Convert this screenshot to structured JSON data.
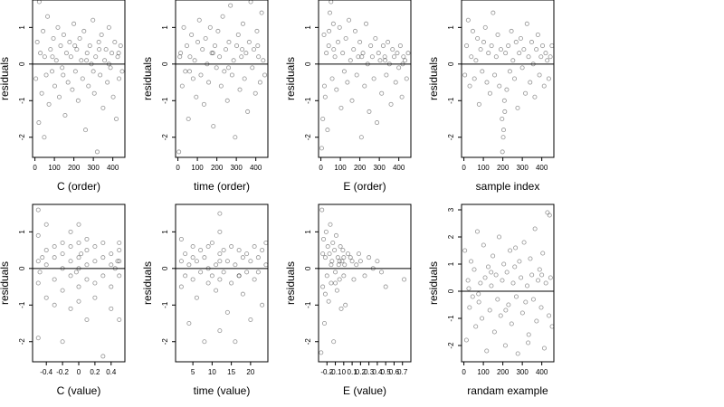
{
  "chart_data": [
    {
      "type": "scatter",
      "xlabel": "C (order)",
      "ylabel": "residuals",
      "xlim": [
        -12,
        462
      ],
      "ylim": [
        -2.55,
        1.75
      ],
      "xticks": [
        0,
        100,
        200,
        300,
        400
      ],
      "yticks": [
        -2,
        -1,
        0,
        1
      ],
      "refline_y": 0,
      "x": [
        5,
        12,
        20,
        28,
        35,
        42,
        50,
        58,
        65,
        72,
        80,
        88,
        95,
        102,
        110,
        118,
        125,
        132,
        140,
        148,
        155,
        162,
        170,
        178,
        185,
        192,
        200,
        208,
        215,
        222,
        230,
        238,
        245,
        252,
        260,
        268,
        275,
        282,
        290,
        298,
        305,
        312,
        320,
        328,
        335,
        342,
        350,
        358,
        365,
        372,
        380,
        388,
        395,
        402,
        410,
        418,
        425,
        432,
        440,
        448,
        22,
        48,
        90,
        145,
        205,
        265,
        300,
        330,
        380,
        430
      ],
      "y": [
        -0.4,
        0.6,
        -1.6,
        0.3,
        -0.8,
        0.9,
        0.2,
        -0.3,
        1.3,
        -1.1,
        0.4,
        -0.2,
        0.7,
        -0.6,
        0.1,
        1.0,
        -0.9,
        0.5,
        -0.1,
        0.8,
        -1.4,
        0.3,
        -0.5,
        0.6,
        0.2,
        -0.7,
        1.1,
        -0.2,
        0.4,
        -1.0,
        0.7,
        0.1,
        -0.4,
        0.9,
        -1.8,
        0.3,
        -0.6,
        0.5,
        0.0,
        1.2,
        -0.8,
        0.2,
        -2.4,
        0.6,
        -0.3,
        0.8,
        -1.2,
        0.1,
        0.4,
        -0.5,
        1.0,
        -0.1,
        0.3,
        -0.9,
        0.6,
        -1.5,
        0.2,
        -0.4,
        0.5,
        -0.2,
        1.7,
        -2.0,
        0.2,
        -0.3,
        0.5,
        0.1,
        -0.2,
        0.4,
        0.0,
        0.3
      ]
    },
    {
      "type": "scatter",
      "xlabel": "time (order)",
      "ylabel": "residuals",
      "xlim": [
        -12,
        462
      ],
      "ylim": [
        -2.55,
        1.75
      ],
      "xticks": [
        0,
        100,
        200,
        300,
        400
      ],
      "yticks": [
        -2,
        -1,
        0,
        1
      ],
      "refline_y": 0,
      "x": [
        5,
        14,
        22,
        30,
        38,
        46,
        54,
        62,
        70,
        78,
        86,
        94,
        102,
        110,
        118,
        126,
        134,
        142,
        150,
        158,
        166,
        174,
        182,
        190,
        198,
        206,
        214,
        222,
        230,
        238,
        246,
        254,
        262,
        270,
        278,
        286,
        294,
        302,
        310,
        318,
        326,
        334,
        342,
        350,
        358,
        366,
        374,
        382,
        390,
        398,
        406,
        414,
        422,
        430,
        438,
        446,
        10,
        60,
        180,
        260,
        330,
        410
      ],
      "y": [
        -2.4,
        0.3,
        -0.6,
        1.0,
        -0.2,
        0.5,
        -1.5,
        0.2,
        0.8,
        -0.4,
        0.1,
        -0.9,
        0.6,
        1.2,
        -0.3,
        0.4,
        -1.1,
        0.7,
        0.0,
        -0.5,
        1.0,
        0.3,
        -1.7,
        0.5,
        -0.1,
        0.9,
        0.2,
        -0.6,
        1.3,
        -0.2,
        0.4,
        -1.0,
        0.6,
        1.6,
        -0.3,
        0.1,
        -2.0,
        0.5,
        0.8,
        -0.7,
        0.2,
        1.1,
        -0.4,
        0.3,
        -1.3,
        0.6,
        1.7,
        -0.1,
        0.4,
        -0.8,
        0.9,
        0.2,
        -0.5,
        1.4,
        0.1,
        -0.3,
        0.2,
        -0.2,
        0.3,
        -0.1,
        0.4,
        0.5
      ]
    },
    {
      "type": "scatter",
      "xlabel": "E (order)",
      "ylabel": "residuals",
      "xlim": [
        -12,
        462
      ],
      "ylim": [
        -2.55,
        1.75
      ],
      "xticks": [
        0,
        100,
        200,
        300,
        400
      ],
      "yticks": [
        -2,
        -1,
        0,
        1
      ],
      "refline_y": 0,
      "x": [
        4,
        10,
        16,
        22,
        28,
        34,
        40,
        46,
        52,
        58,
        64,
        72,
        80,
        88,
        96,
        104,
        112,
        120,
        128,
        136,
        144,
        152,
        160,
        168,
        176,
        184,
        192,
        200,
        208,
        216,
        224,
        232,
        240,
        248,
        256,
        264,
        272,
        280,
        288,
        296,
        304,
        312,
        320,
        328,
        336,
        344,
        352,
        360,
        368,
        376,
        384,
        392,
        400,
        408,
        416,
        424,
        432,
        440,
        448,
        18,
        42,
        66,
        210,
        330,
        420
      ],
      "y": [
        -2.3,
        -1.5,
        0.8,
        -0.9,
        0.3,
        -1.8,
        0.5,
        1.4,
        1.7,
        -0.4,
        1.1,
        0.2,
        -0.7,
        0.6,
        1.0,
        -1.2,
        0.3,
        -0.2,
        0.7,
        -0.5,
        1.2,
        0.1,
        -1.0,
        0.4,
        0.9,
        -0.3,
        0.2,
        0.6,
        -2.0,
        0.3,
        -0.6,
        1.1,
        0.0,
        -1.3,
        0.5,
        0.2,
        -0.4,
        0.7,
        -1.6,
        0.3,
        0.1,
        -0.8,
        0.5,
        0.2,
        -0.3,
        0.6,
        0.0,
        -1.1,
        0.4,
        0.2,
        -0.5,
        0.3,
        -0.1,
        0.5,
        -0.9,
        0.2,
        0.1,
        -0.4,
        0.3,
        -0.6,
        0.9,
        0.4,
        0.2,
        0.1,
        0.0
      ]
    },
    {
      "type": "scatter",
      "xlabel": "sample index",
      "ylabel": "residuals",
      "xlim": [
        -12,
        462
      ],
      "ylim": [
        -2.55,
        1.75
      ],
      "xticks": [
        0,
        100,
        200,
        300,
        400
      ],
      "yticks": [
        -2,
        -1,
        0,
        1
      ],
      "refline_y": 0,
      "x": [
        5,
        14,
        22,
        30,
        38,
        46,
        54,
        62,
        70,
        78,
        86,
        94,
        102,
        110,
        118,
        126,
        134,
        142,
        150,
        158,
        166,
        174,
        182,
        190,
        196,
        202,
        208,
        214,
        220,
        228,
        236,
        244,
        252,
        260,
        268,
        276,
        284,
        292,
        300,
        308,
        316,
        324,
        332,
        340,
        348,
        356,
        364,
        372,
        380,
        388,
        396,
        404,
        412,
        420,
        428,
        436,
        444,
        452,
        198,
        204,
        210
      ],
      "y": [
        -0.3,
        0.5,
        1.2,
        -0.6,
        0.2,
        0.9,
        -0.4,
        0.1,
        0.7,
        -1.1,
        0.4,
        -0.2,
        0.6,
        1.0,
        -0.5,
        0.3,
        -0.8,
        0.5,
        1.4,
        -0.3,
        0.2,
        0.8,
        -0.6,
        0.4,
        -1.5,
        -2.0,
        -1.0,
        0.3,
        -0.7,
        0.5,
        -0.2,
        0.9,
        0.1,
        -0.4,
        0.6,
        -1.2,
        0.3,
        0.7,
        -0.1,
        0.4,
        -0.8,
        1.1,
        0.2,
        -0.5,
        0.6,
        0.0,
        -0.9,
        0.4,
        0.8,
        -0.3,
        0.2,
        0.5,
        -0.6,
        0.3,
        0.1,
        -0.4,
        0.2,
        0.5,
        -2.4,
        -1.8,
        -1.3
      ]
    },
    {
      "type": "scatter",
      "xlabel": "C (value)",
      "ylabel": "residuals",
      "xlim": [
        -0.57,
        0.57
      ],
      "ylim": [
        -2.55,
        1.75
      ],
      "xticks": [
        -0.4,
        -0.2,
        0.0,
        0.2,
        0.4
      ],
      "yticks": [
        -2,
        -1,
        0,
        1
      ],
      "refline_y": 0,
      "x": [
        -0.5,
        -0.5,
        -0.5,
        -0.5,
        -0.5,
        -0.4,
        -0.4,
        -0.4,
        -0.4,
        -0.3,
        -0.3,
        -0.3,
        -0.3,
        -0.2,
        -0.2,
        -0.2,
        -0.2,
        -0.2,
        -0.1,
        -0.1,
        -0.1,
        -0.1,
        -0.1,
        0.0,
        0.0,
        0.0,
        0.0,
        0.0,
        0.0,
        0.1,
        0.1,
        0.1,
        0.1,
        0.1,
        0.2,
        0.2,
        0.2,
        0.2,
        0.3,
        0.3,
        0.3,
        0.3,
        0.4,
        0.4,
        0.4,
        0.4,
        0.5,
        0.5,
        0.5,
        0.5,
        0.5,
        -0.48,
        -0.45,
        0.45,
        0.48,
        0.03,
        -0.03
      ],
      "y": [
        -1.9,
        -0.4,
        0.2,
        0.9,
        1.6,
        -0.8,
        0.1,
        0.5,
        1.2,
        -0.3,
        0.3,
        0.6,
        -1.0,
        -0.6,
        0.0,
        0.4,
        0.7,
        -2.0,
        -0.2,
        0.2,
        0.6,
        1.0,
        -1.1,
        -0.5,
        0.0,
        0.3,
        0.7,
        1.2,
        -0.9,
        -0.3,
        0.1,
        0.5,
        0.8,
        -1.4,
        -0.4,
        0.2,
        0.6,
        -0.8,
        -0.2,
        0.3,
        0.7,
        -2.4,
        -0.5,
        0.1,
        0.4,
        -1.1,
        -1.4,
        -0.2,
        0.2,
        0.5,
        0.7,
        -0.1,
        0.3,
        0.0,
        0.2,
        0.4,
        -0.1
      ]
    },
    {
      "type": "scatter",
      "xlabel": "time (value)",
      "ylabel": "residuals",
      "xlim": [
        0.5,
        24.5
      ],
      "ylim": [
        -2.55,
        1.75
      ],
      "xticks": [
        5,
        10,
        15,
        20
      ],
      "yticks": [
        -2,
        -1,
        0,
        1
      ],
      "refline_y": 0,
      "x": [
        2,
        2,
        2,
        3,
        3,
        4,
        4,
        5,
        5,
        5,
        6,
        6,
        7,
        7,
        8,
        8,
        9,
        9,
        10,
        10,
        11,
        11,
        12,
        12,
        12,
        12,
        13,
        13,
        14,
        14,
        15,
        15,
        16,
        16,
        17,
        17,
        18,
        18,
        19,
        19,
        20,
        20,
        21,
        21,
        22,
        22,
        23,
        23,
        24,
        24,
        12,
        12,
        9,
        17
      ],
      "y": [
        -0.5,
        0.2,
        0.8,
        -0.2,
        0.4,
        -1.5,
        0.1,
        -0.3,
        0.3,
        0.6,
        -0.8,
        0.2,
        -0.1,
        0.5,
        -2.0,
        0.3,
        -0.4,
        0.6,
        -0.2,
        0.7,
        -0.6,
        0.1,
        -0.3,
        0.4,
        1.0,
        1.5,
        -0.1,
        0.5,
        -1.2,
        0.2,
        -0.4,
        0.6,
        -2.0,
        0.1,
        -0.2,
        0.5,
        -0.7,
        0.3,
        -0.1,
        0.4,
        -1.4,
        0.2,
        -0.3,
        0.6,
        -0.1,
        0.3,
        -1.0,
        0.5,
        0.1,
        0.7,
        -1.7,
        0.2,
        0.0,
        -0.2
      ]
    },
    {
      "type": "scatter",
      "xlabel": "E (value)",
      "ylabel": "residuals",
      "xlim": [
        -0.3,
        0.8
      ],
      "ylim": [
        -2.55,
        1.75
      ],
      "xticks": [
        -0.2,
        -0.1,
        0.0,
        0.1,
        0.2,
        0.3,
        0.4,
        0.5,
        0.6,
        0.7
      ],
      "yticks": [
        -2,
        -1,
        0,
        1
      ],
      "refline_y": 0,
      "x": [
        -0.27,
        -0.26,
        -0.25,
        -0.24,
        -0.23,
        -0.22,
        -0.21,
        -0.2,
        -0.19,
        -0.18,
        -0.17,
        -0.16,
        -0.15,
        -0.14,
        -0.13,
        -0.12,
        -0.11,
        -0.1,
        -0.09,
        -0.08,
        -0.07,
        -0.06,
        -0.05,
        -0.04,
        -0.03,
        -0.02,
        -0.01,
        0.0,
        0.01,
        0.02,
        0.05,
        0.08,
        0.1,
        0.12,
        0.15,
        0.18,
        0.2,
        0.25,
        0.3,
        0.35,
        0.4,
        0.45,
        0.5,
        0.72,
        -0.25,
        -0.22,
        -0.15,
        -0.1,
        -0.05,
        0.0
      ],
      "y": [
        -2.3,
        1.6,
        -0.5,
        0.8,
        -1.5,
        0.3,
        1.0,
        -0.2,
        0.6,
        -0.9,
        0.4,
        1.2,
        -0.4,
        0.2,
        0.7,
        -2.0,
        0.5,
        -0.1,
        0.9,
        -0.6,
        0.3,
        0.1,
        -0.3,
        0.6,
        -1.1,
        0.2,
        0.5,
        -0.2,
        0.1,
        -1.0,
        0.4,
        0.3,
        0.2,
        -0.3,
        0.1,
        0.4,
        0.2,
        -0.2,
        0.3,
        0.0,
        0.2,
        -0.1,
        -0.5,
        -0.3,
        0.4,
        -0.7,
        0.1,
        -0.4,
        0.2,
        0.3
      ]
    },
    {
      "type": "scatter",
      "xlabel": "randam example",
      "ylabel": "residuals",
      "xlim": [
        -12,
        462
      ],
      "ylim": [
        -2.6,
        3.2
      ],
      "xticks": [
        0,
        100,
        200,
        300,
        400
      ],
      "yticks": [
        -2,
        -1,
        0,
        1,
        2,
        3
      ],
      "refline_y": 0,
      "x": [
        5,
        13,
        21,
        29,
        37,
        45,
        53,
        61,
        69,
        77,
        85,
        93,
        101,
        109,
        117,
        125,
        133,
        141,
        149,
        157,
        165,
        173,
        181,
        189,
        197,
        205,
        213,
        221,
        229,
        237,
        245,
        253,
        261,
        269,
        277,
        285,
        293,
        301,
        309,
        317,
        325,
        333,
        341,
        349,
        357,
        365,
        373,
        381,
        389,
        397,
        405,
        413,
        421,
        429,
        437,
        445,
        453,
        25,
        75,
        140,
        215,
        265,
        330,
        400,
        440
      ],
      "y": [
        1.5,
        -1.8,
        0.4,
        -0.6,
        1.1,
        -0.2,
        0.8,
        -1.3,
        2.2,
        -0.4,
        0.3,
        -1.0,
        1.7,
        0.5,
        -2.2,
        0.9,
        -0.7,
        0.2,
        1.3,
        -1.5,
        0.6,
        -0.3,
        2.0,
        -0.9,
        0.4,
        1.0,
        -2.0,
        0.7,
        -0.5,
        1.5,
        -1.2,
        0.3,
        0.9,
        -0.2,
        -2.3,
        1.1,
        0.5,
        -0.8,
        1.8,
        -0.4,
        0.2,
        -1.6,
        1.2,
        0.6,
        -0.3,
        2.3,
        -1.1,
        0.4,
        0.8,
        -0.6,
        1.4,
        -2.1,
        0.3,
        2.9,
        -0.9,
        0.5,
        -1.3,
        0.1,
        -0.1,
        0.7,
        -0.7,
        1.6,
        -1.9,
        0.6,
        2.8
      ]
    }
  ]
}
